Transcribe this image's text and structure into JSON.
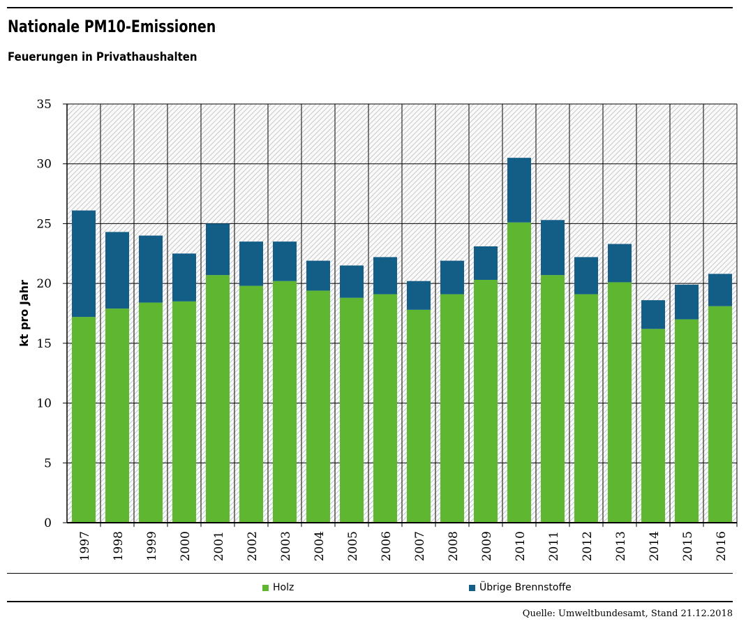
{
  "header": {
    "title": "Nationale PM10-Emissionen",
    "subtitle": "Feuerungen in Privathaushalten"
  },
  "footer": {
    "source": "Quelle: Umweltbundesamt, Stand 21.12.2018"
  },
  "colors": {
    "holz": "#5eb631",
    "uebrige": "#125e87"
  },
  "chart_data": {
    "type": "bar",
    "stacked": true,
    "title": "Nationale PM10-Emissionen",
    "subtitle": "Feuerungen in Privathaushalten",
    "xlabel": "",
    "ylabel": "kt pro Jahr",
    "ylim": [
      0,
      35
    ],
    "yticks": [
      0,
      5,
      10,
      15,
      20,
      25,
      30,
      35
    ],
    "grid": true,
    "legend": "bottom",
    "categories": [
      "1997",
      "1998",
      "1999",
      "2000",
      "2001",
      "2002",
      "2003",
      "2004",
      "2005",
      "2006",
      "2007",
      "2008",
      "2009",
      "2010",
      "2011",
      "2012",
      "2013",
      "2014",
      "2015",
      "2016"
    ],
    "series": [
      {
        "name": "Holz",
        "values": [
          17.2,
          17.9,
          18.4,
          18.5,
          20.7,
          19.8,
          20.2,
          19.4,
          18.8,
          19.1,
          17.8,
          19.1,
          20.3,
          25.1,
          20.7,
          19.1,
          20.1,
          16.2,
          17.0,
          18.1
        ]
      },
      {
        "name": "Übrige Brennstoffe",
        "values": [
          8.9,
          6.4,
          5.6,
          4.0,
          4.3,
          3.7,
          3.3,
          2.5,
          2.7,
          3.1,
          2.4,
          2.8,
          2.8,
          5.4,
          4.6,
          3.1,
          3.2,
          2.4,
          2.9,
          2.7
        ]
      }
    ]
  }
}
